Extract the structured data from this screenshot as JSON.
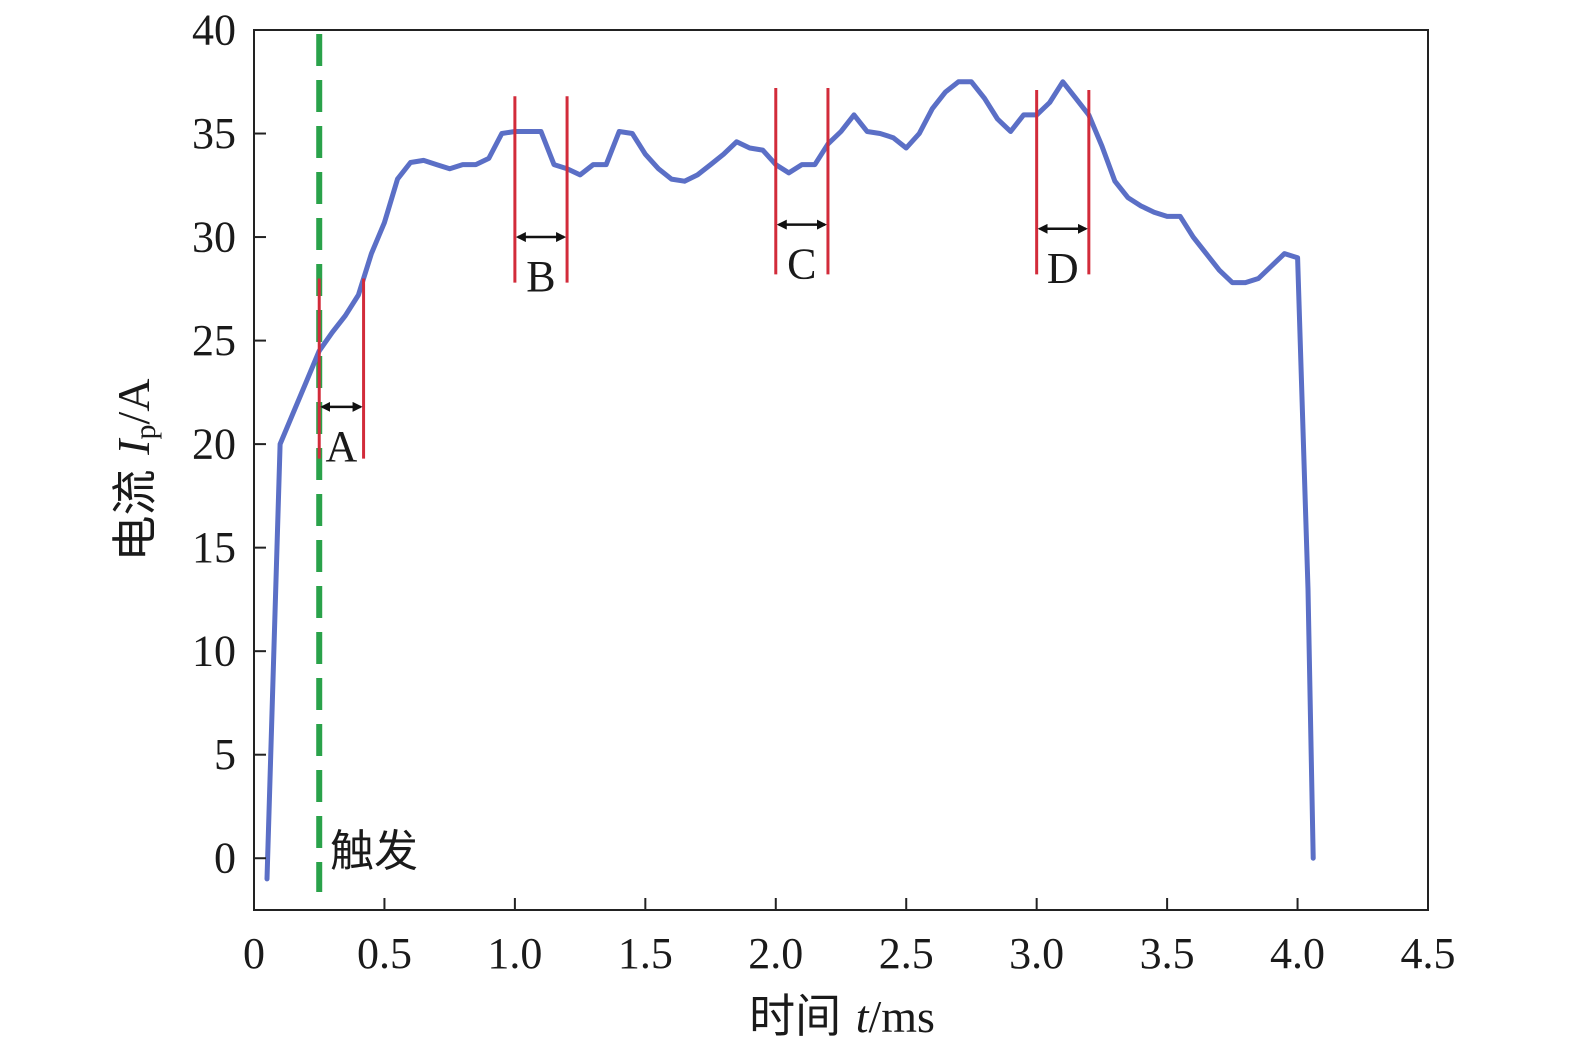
{
  "chart_data": {
    "type": "line",
    "x_axis": {
      "label_prefix": "时间 ",
      "label_var": "t",
      "label_unit": "/ms",
      "min": 0,
      "max": 4.5,
      "ticks": [
        0,
        0.5,
        1.0,
        1.5,
        2.0,
        2.5,
        3.0,
        3.5,
        4.0,
        4.5
      ],
      "tick_labels": [
        "0",
        "0.5",
        "1.0",
        "1.5",
        "2.0",
        "2.5",
        "3.0",
        "3.5",
        "4.0",
        "4.5"
      ]
    },
    "y_axis": {
      "label_prefix": "电流 ",
      "label_var": "I",
      "label_sub": "p",
      "label_unit": "/A",
      "min": -2.5,
      "max": 40,
      "ticks": [
        0,
        5,
        10,
        15,
        20,
        25,
        30,
        35,
        40
      ],
      "tick_labels": [
        "0",
        "5",
        "10",
        "15",
        "20",
        "25",
        "30",
        "35",
        "40"
      ]
    },
    "grid": false,
    "series": [
      {
        "color": "#5b6fc6",
        "points": [
          [
            0.05,
            -1.0
          ],
          [
            0.1,
            20.0
          ],
          [
            0.15,
            21.5
          ],
          [
            0.2,
            23.0
          ],
          [
            0.25,
            24.5
          ],
          [
            0.3,
            25.4
          ],
          [
            0.35,
            26.2
          ],
          [
            0.4,
            27.2
          ],
          [
            0.45,
            29.2
          ],
          [
            0.5,
            30.7
          ],
          [
            0.55,
            32.8
          ],
          [
            0.6,
            33.6
          ],
          [
            0.65,
            33.7
          ],
          [
            0.7,
            33.5
          ],
          [
            0.75,
            33.3
          ],
          [
            0.8,
            33.5
          ],
          [
            0.85,
            33.5
          ],
          [
            0.9,
            33.8
          ],
          [
            0.95,
            35.0
          ],
          [
            1.0,
            35.1
          ],
          [
            1.05,
            35.1
          ],
          [
            1.1,
            35.1
          ],
          [
            1.15,
            33.5
          ],
          [
            1.2,
            33.3
          ],
          [
            1.25,
            33.0
          ],
          [
            1.3,
            33.5
          ],
          [
            1.35,
            33.5
          ],
          [
            1.4,
            35.1
          ],
          [
            1.45,
            35.0
          ],
          [
            1.5,
            34.0
          ],
          [
            1.55,
            33.3
          ],
          [
            1.6,
            32.8
          ],
          [
            1.65,
            32.7
          ],
          [
            1.7,
            33.0
          ],
          [
            1.75,
            33.5
          ],
          [
            1.8,
            34.0
          ],
          [
            1.85,
            34.6
          ],
          [
            1.9,
            34.3
          ],
          [
            1.95,
            34.2
          ],
          [
            2.0,
            33.5
          ],
          [
            2.05,
            33.1
          ],
          [
            2.1,
            33.5
          ],
          [
            2.15,
            33.5
          ],
          [
            2.2,
            34.5
          ],
          [
            2.25,
            35.1
          ],
          [
            2.3,
            35.9
          ],
          [
            2.35,
            35.1
          ],
          [
            2.4,
            35.0
          ],
          [
            2.45,
            34.8
          ],
          [
            2.5,
            34.3
          ],
          [
            2.55,
            35.0
          ],
          [
            2.6,
            36.2
          ],
          [
            2.65,
            37.0
          ],
          [
            2.7,
            37.5
          ],
          [
            2.75,
            37.5
          ],
          [
            2.8,
            36.7
          ],
          [
            2.85,
            35.7
          ],
          [
            2.9,
            35.1
          ],
          [
            2.95,
            35.9
          ],
          [
            3.0,
            35.9
          ],
          [
            3.05,
            36.5
          ],
          [
            3.1,
            37.5
          ],
          [
            3.15,
            36.7
          ],
          [
            3.2,
            35.9
          ],
          [
            3.25,
            34.4
          ],
          [
            3.3,
            32.7
          ],
          [
            3.35,
            31.9
          ],
          [
            3.4,
            31.5
          ],
          [
            3.45,
            31.2
          ],
          [
            3.5,
            31.0
          ],
          [
            3.55,
            31.0
          ],
          [
            3.6,
            30.0
          ],
          [
            3.65,
            29.2
          ],
          [
            3.7,
            28.4
          ],
          [
            3.75,
            27.8
          ],
          [
            3.8,
            27.8
          ],
          [
            3.85,
            28.0
          ],
          [
            3.9,
            28.6
          ],
          [
            3.95,
            29.2
          ],
          [
            4.0,
            29.0
          ],
          [
            4.04,
            13.0
          ],
          [
            4.06,
            0.0
          ]
        ]
      }
    ],
    "trigger": {
      "label": "触发",
      "x": 0.25,
      "color": "#2aa24a"
    },
    "intervals": [
      {
        "label": "A",
        "x1": 0.25,
        "x2": 0.42,
        "y_top": 28.0,
        "y_bottom": 19.3,
        "arrow_y": 21.8,
        "color": "#d22b3a"
      },
      {
        "label": "B",
        "x1": 1.0,
        "x2": 1.2,
        "y_top": 36.8,
        "y_bottom": 27.8,
        "arrow_y": 30.0,
        "color": "#d22b3a"
      },
      {
        "label": "C",
        "x1": 2.0,
        "x2": 2.2,
        "y_top": 37.2,
        "y_bottom": 28.2,
        "arrow_y": 30.6,
        "color": "#d22b3a"
      },
      {
        "label": "D",
        "x1": 3.0,
        "x2": 3.2,
        "y_top": 37.1,
        "y_bottom": 28.2,
        "arrow_y": 30.4,
        "color": "#d22b3a"
      }
    ]
  }
}
